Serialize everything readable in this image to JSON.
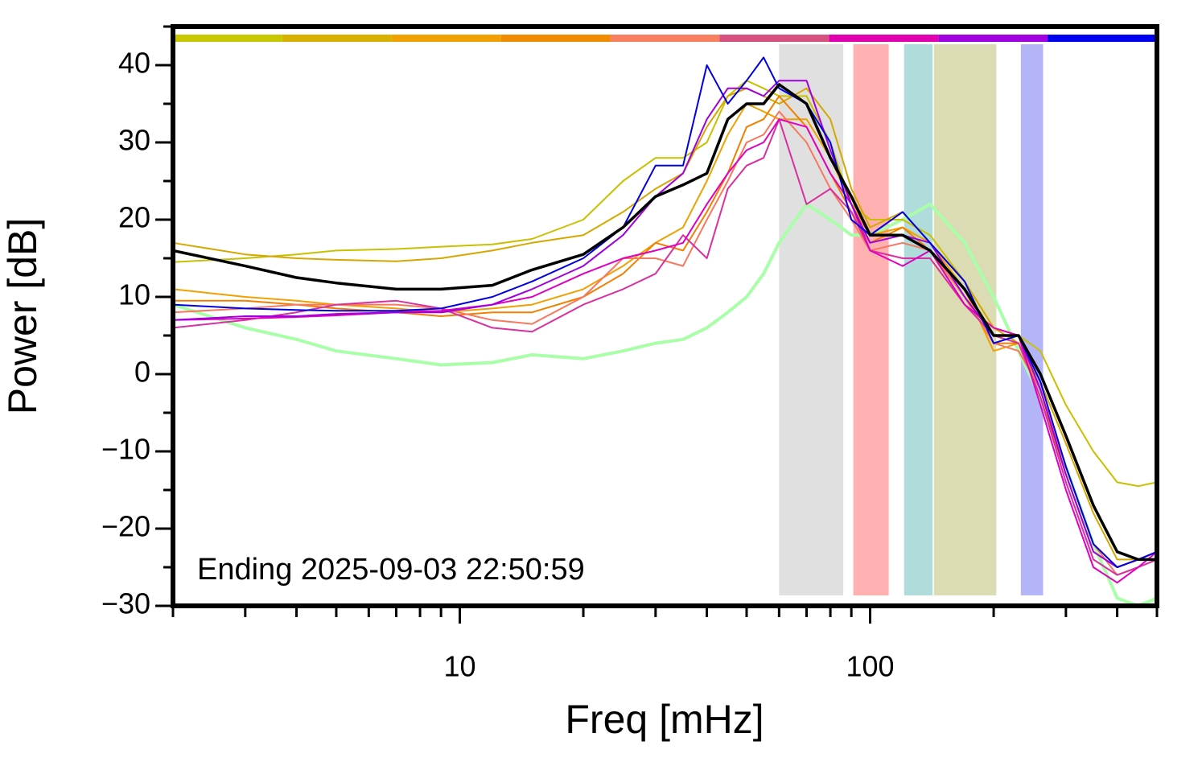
{
  "chart_data": {
    "type": "line",
    "xlabel": "Freq [mHz]",
    "ylabel": "Power [dB]",
    "annotation": "Ending 2025-09-03 22:50:59",
    "xscale": "log",
    "xlim": [
      2,
      500
    ],
    "ylim": [
      -30,
      45
    ],
    "xticks": [
      10,
      100
    ],
    "xminor_ticks": [
      2,
      3,
      4,
      5,
      6,
      7,
      8,
      9,
      20,
      30,
      40,
      50,
      60,
      70,
      80,
      90,
      200,
      300,
      400,
      500
    ],
    "yticks": [
      {
        "value": -30,
        "label": "−30"
      },
      {
        "value": -20,
        "label": "−20"
      },
      {
        "value": -10,
        "label": "−10"
      },
      0,
      10,
      20,
      30,
      40
    ],
    "yminor_ticks": [
      -25,
      -15,
      -5,
      5,
      15,
      25,
      35,
      45
    ],
    "color_bar": [
      "#c8c800",
      "#d8b000",
      "#f0a000",
      "#f08c00",
      "#f88060",
      "#d85080",
      "#e000b0",
      "#a000e0",
      "#0000f0"
    ],
    "bands": [
      {
        "x": [
          60,
          86
        ],
        "color": "#e0e0e0"
      },
      {
        "x": [
          91,
          111
        ],
        "color": "#ffb0b0"
      },
      {
        "x": [
          121,
          142
        ],
        "color": "#b0dcdc"
      },
      {
        "x": [
          143,
          203
        ],
        "color": "#dcdcb4"
      },
      {
        "x": [
          233,
          264
        ],
        "color": "#b4b4f8"
      }
    ],
    "x": [
      2,
      3,
      4,
      5,
      7,
      9,
      12,
      15,
      20,
      25,
      30,
      35,
      40,
      45,
      50,
      55,
      60,
      70,
      80,
      90,
      100,
      120,
      140,
      170,
      200,
      230,
      260,
      300,
      350,
      400,
      450,
      500
    ],
    "series": [
      {
        "color": "#a8ffa8",
        "linewidth": 4,
        "values": [
          9,
          6,
          4.5,
          3,
          2,
          1.2,
          1.5,
          2.5,
          2,
          3,
          4,
          4.5,
          6,
          8,
          10,
          13,
          17,
          22,
          20,
          18,
          18,
          20,
          22,
          17,
          10,
          3,
          -3,
          -12,
          -22,
          -29,
          -30,
          -29
        ]
      },
      {
        "color": "#c8c000",
        "linewidth": 2,
        "values": [
          14.5,
          15,
          15.5,
          16,
          16.2,
          16.5,
          16.8,
          17.5,
          20,
          25,
          28,
          28,
          30,
          36,
          38,
          37,
          36,
          36,
          30,
          22,
          20,
          20,
          18,
          12,
          6,
          5,
          3,
          -4,
          -10,
          -14,
          -14.5,
          -14
        ]
      },
      {
        "color": "#d4a800",
        "linewidth": 2,
        "values": [
          17,
          15.5,
          15,
          14.8,
          14.6,
          15,
          16,
          17,
          18,
          21,
          24,
          26,
          32,
          36,
          37,
          36,
          35,
          37,
          33,
          24,
          19,
          21,
          17,
          12,
          6,
          4,
          -1,
          -9,
          -18,
          -24,
          -24,
          -24
        ]
      },
      {
        "color": "#f0a000",
        "linewidth": 2,
        "values": [
          11,
          10,
          9.5,
          9,
          8.5,
          8,
          8.5,
          9,
          11,
          14,
          17,
          19,
          25,
          31,
          35,
          34,
          33,
          33,
          28,
          22,
          18,
          19,
          17,
          11,
          3,
          4,
          -2,
          -12,
          -22,
          -25,
          -24,
          -24
        ]
      },
      {
        "color": "#f08000",
        "linewidth": 2,
        "values": [
          9.5,
          9.5,
          9,
          8.5,
          8,
          7.5,
          8,
          8,
          10,
          13,
          17,
          16,
          21,
          26,
          32,
          33,
          36,
          32,
          26,
          21,
          17,
          19,
          16,
          10,
          4,
          4,
          -3,
          -13,
          -23,
          -25,
          -24,
          -23
        ]
      },
      {
        "color": "#f87860",
        "linewidth": 2,
        "values": [
          8,
          8.5,
          9,
          9,
          9,
          8.5,
          7,
          6.5,
          10,
          15,
          15,
          14,
          20,
          25,
          30,
          31,
          34,
          30,
          24,
          20,
          16,
          17,
          16,
          10,
          4,
          3,
          -2,
          -12,
          -22,
          -26,
          -25,
          -24
        ]
      },
      {
        "color": "#d830a0",
        "linewidth": 2,
        "values": [
          6,
          7,
          8,
          9,
          9.5,
          8.5,
          6,
          5.5,
          9,
          11,
          13,
          18,
          15,
          24,
          27,
          28,
          33,
          22,
          24,
          21,
          16,
          15,
          15,
          9,
          5,
          4,
          -3,
          -14,
          -24,
          -26,
          -25,
          -24
        ]
      },
      {
        "color": "#e000c0",
        "linewidth": 2,
        "values": [
          7,
          7.2,
          7.4,
          7.6,
          8,
          8.2,
          9,
          10,
          13,
          15,
          16,
          17,
          22,
          26,
          29,
          30,
          33,
          32,
          26,
          22,
          16,
          14,
          16,
          9,
          6,
          5,
          -4,
          -15,
          -25,
          -27,
          -25,
          -23
        ]
      },
      {
        "color": "#a000e0",
        "linewidth": 2,
        "values": [
          7,
          7.5,
          7.5,
          7.8,
          8,
          8,
          9,
          11,
          14,
          18,
          23,
          26,
          33,
          37,
          37,
          36,
          38,
          38,
          29,
          22,
          17,
          18,
          17,
          10,
          5,
          5,
          -2,
          -13,
          -23,
          -25,
          -24,
          -23
        ]
      },
      {
        "color": "#0000e0",
        "linewidth": 2,
        "values": [
          9,
          8.5,
          8.3,
          8.2,
          8.2,
          8.5,
          10,
          12,
          15,
          19,
          27,
          27,
          40,
          35,
          38,
          41,
          37,
          35,
          30,
          20,
          18,
          21,
          17,
          12,
          4,
          5,
          -1,
          -12,
          -22,
          -25,
          -24,
          -23
        ]
      },
      {
        "color": "#000000",
        "linewidth": 3.5,
        "values": [
          16,
          14,
          12.5,
          11.8,
          11,
          11,
          11.5,
          13.5,
          15.5,
          19,
          23,
          24.5,
          26,
          33,
          35,
          35,
          37.5,
          35,
          28,
          23,
          18,
          18,
          16,
          11,
          5,
          5,
          0,
          -8,
          -17,
          -23,
          -24,
          -24
        ]
      }
    ]
  }
}
